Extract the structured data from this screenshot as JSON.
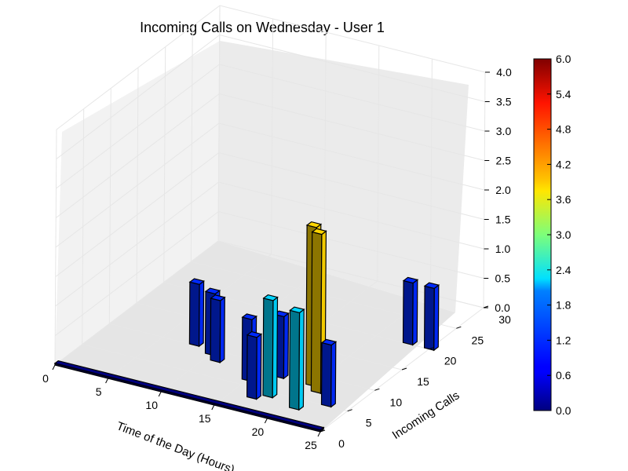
{
  "chart_data": {
    "type": "bar3d",
    "title": "Incoming Calls on Wednesday - User 1",
    "xlabel": "Time of the Day (Hours)",
    "ylabel": "Incoming Calls",
    "zlabel": "",
    "xlim": [
      0,
      25
    ],
    "ylim": [
      0,
      30
    ],
    "zlim": [
      0,
      4
    ],
    "xticks": [
      "0",
      "5",
      "10",
      "15",
      "20",
      "25"
    ],
    "yticks": [
      "0",
      "5",
      "10",
      "15",
      "20",
      "25",
      "30"
    ],
    "zticks": [
      "0.0",
      "0.5",
      "1.0",
      "1.5",
      "2.0",
      "2.5",
      "3.0",
      "3.5",
      "4.0"
    ],
    "colorbar": {
      "min": 0,
      "max": 6,
      "ticks": [
        "0.0",
        "0.6",
        "1.2",
        "1.8",
        "2.4",
        "3.0",
        "3.6",
        "4.2",
        "4.8",
        "5.4",
        "6.0"
      ],
      "colormap": "jet"
    },
    "baseline": {
      "x_range": [
        0,
        25
      ],
      "y": 0,
      "value": 0
    },
    "bars": [
      {
        "x": 8,
        "y": 10,
        "value": 1
      },
      {
        "x": 10,
        "y": 9,
        "value": 1
      },
      {
        "x": 11,
        "y": 8,
        "value": 1
      },
      {
        "x": 15,
        "y": 6,
        "value": 1
      },
      {
        "x": 17,
        "y": 8,
        "value": 1
      },
      {
        "x": 17,
        "y": 3,
        "value": 1
      },
      {
        "x": 18,
        "y": 4,
        "value": 2
      },
      {
        "x": 20,
        "y": 8,
        "value": 4
      },
      {
        "x": 21,
        "y": 7,
        "value": 4
      },
      {
        "x": 21,
        "y": 3,
        "value": 2
      },
      {
        "x": 23,
        "y": 20,
        "value": 1
      },
      {
        "x": 23,
        "y": 5,
        "value": 1
      },
      {
        "x": 25,
        "y": 20,
        "value": 1
      }
    ]
  }
}
